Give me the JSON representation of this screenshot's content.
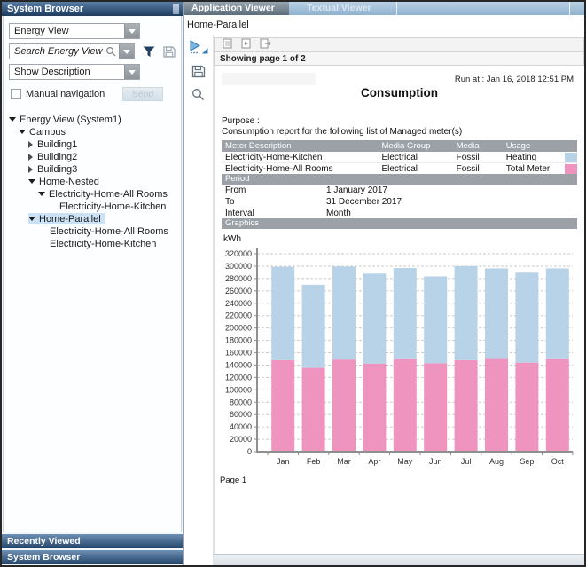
{
  "system_browser": {
    "title": "System Browser",
    "view_dropdown": {
      "value": "Energy View"
    },
    "search": {
      "placeholder": "Search Energy View"
    },
    "description_dropdown": {
      "value": "Show Description"
    },
    "manual_navigation": {
      "label": "Manual navigation",
      "checked": false
    },
    "send_button": {
      "label": "Send",
      "enabled": false
    },
    "tree": [
      {
        "label": "Energy View (System1)",
        "level": 0,
        "expander": "expanded",
        "selected": false
      },
      {
        "label": "Campus",
        "level": 1,
        "expander": "expanded",
        "selected": false
      },
      {
        "label": "Building1",
        "level": 2,
        "expander": "collapsed",
        "selected": false
      },
      {
        "label": "Building2",
        "level": 2,
        "expander": "collapsed",
        "selected": false
      },
      {
        "label": "Building3",
        "level": 2,
        "expander": "collapsed",
        "selected": false
      },
      {
        "label": "Home-Nested",
        "level": 2,
        "expander": "expanded",
        "selected": false
      },
      {
        "label": "Electricity-Home-All Rooms",
        "level": 3,
        "expander": "expanded",
        "selected": false
      },
      {
        "label": "Electricity-Home-Kitchen",
        "level": 4,
        "expander": "none",
        "selected": false
      },
      {
        "label": "Home-Parallel",
        "level": 2,
        "expander": "expanded",
        "selected": true
      },
      {
        "label": "Electricity-Home-All Rooms",
        "level": 3,
        "expander": "none",
        "selected": false
      },
      {
        "label": "Electricity-Home-Kitchen",
        "level": 3,
        "expander": "none",
        "selected": false
      }
    ],
    "bottom_bars": [
      {
        "label": "Recently Viewed"
      },
      {
        "label": "System Browser"
      }
    ]
  },
  "viewer": {
    "tabs": [
      {
        "label": "Application Viewer",
        "active": true
      },
      {
        "label": "Textual Viewer",
        "active": false
      }
    ],
    "context_label": "Home-Parallel",
    "paging_status": "Showing page 1 of 2"
  },
  "report": {
    "run_at": "Run at : Jan 16, 2018 12:51 PM",
    "title": "Consumption",
    "purpose_label": "Purpose :",
    "purpose_text": "Consumption report for the following list of Managed meter(s)",
    "meter_table": {
      "headers": [
        "Meter Description",
        "Media Group",
        "Media",
        "Usage"
      ],
      "rows": [
        {
          "meter_description": "Electricity-Home-Kitchen",
          "media_group": "Electrical",
          "media": "Fossil",
          "usage": "Heating",
          "swatch_color": "#b8d3e7"
        },
        {
          "meter_description": "Electricity-Home-All Rooms",
          "media_group": "Electrical",
          "media": "Fossil",
          "usage": "Total Meter",
          "swatch_color": "#ef93bf"
        }
      ]
    },
    "period": {
      "title": "Period",
      "rows": [
        {
          "label": "From",
          "value": "1 January 2017"
        },
        {
          "label": "To",
          "value": "31 December 2017"
        },
        {
          "label": "Interval",
          "value": "Month"
        }
      ]
    },
    "graphics_title": "Graphics",
    "page_footer": "Page 1"
  },
  "chart_data": {
    "type": "bar",
    "stacked": true,
    "ylabel": "kWh",
    "categories": [
      "Jan",
      "Feb",
      "Mar",
      "Apr",
      "May",
      "Jun",
      "Jul",
      "Aug",
      "Sep",
      "Oct"
    ],
    "series": [
      {
        "name": "Electricity-Home-All Rooms (Total Meter)",
        "color": "#ef93bf",
        "values": [
          148000,
          135500,
          149000,
          142500,
          149500,
          143000,
          148000,
          150000,
          144000,
          149500
        ]
      },
      {
        "name": "Electricity-Home-Kitchen (Heating)",
        "color": "#b8d3e7",
        "values": [
          151000,
          134500,
          150500,
          145500,
          147500,
          140500,
          152000,
          146500,
          145500,
          147000
        ]
      }
    ],
    "ylim": [
      0,
      320000
    ],
    "ytick_step": 20000,
    "grid": "dashed horizontal gridlines",
    "legend": "color swatches shown beside meter table rows"
  }
}
